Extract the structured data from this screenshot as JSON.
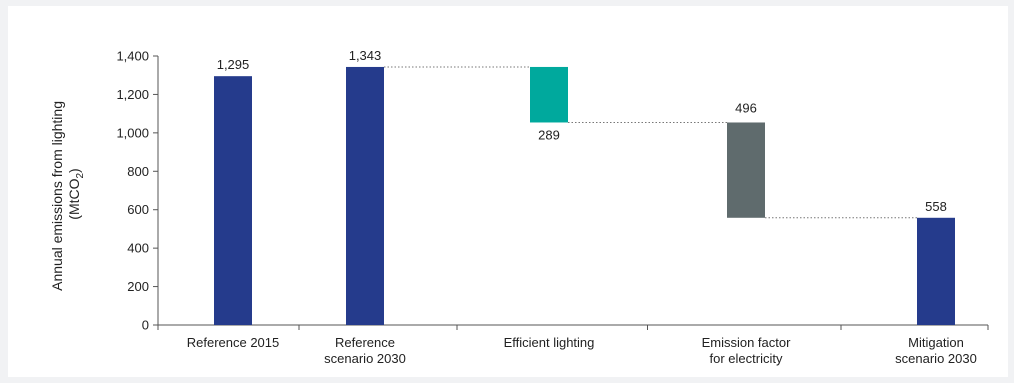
{
  "chart_data": {
    "type": "bar",
    "variant": "waterfall",
    "ylabel_line1": "Annual emissions from lighting",
    "ylabel_line2_prefix": "(MtCO",
    "ylabel_line2_sub": "2",
    "ylabel_line2_suffix": ")",
    "ylim": [
      0,
      1400
    ],
    "yticks": [
      "0",
      "200",
      "400",
      "600",
      "800",
      "1,000",
      "1,200",
      "1,400"
    ],
    "ytick_values": [
      0,
      200,
      400,
      600,
      800,
      1000,
      1200,
      1400
    ],
    "grid": false,
    "legend": "none",
    "categories": [
      [
        "Reference 2015"
      ],
      [
        "Reference",
        "scenario 2030"
      ],
      [
        "Efficient lighting"
      ],
      [
        "Emission factor",
        "for electricity"
      ],
      [
        "Mitigation",
        "scenario 2030"
      ]
    ],
    "bars": [
      {
        "kind": "total",
        "start": 0,
        "end": 1295,
        "label": "1,295",
        "color": "#253b8c"
      },
      {
        "kind": "total",
        "start": 0,
        "end": 1343,
        "label": "1,343",
        "color": "#253b8c"
      },
      {
        "kind": "decrease",
        "start": 1343,
        "end": 1054,
        "label": "289",
        "color": "#00a99d"
      },
      {
        "kind": "decrease",
        "start": 1054,
        "end": 558,
        "label": "496",
        "color": "#5f6b6d"
      },
      {
        "kind": "total",
        "start": 0,
        "end": 558,
        "label": "558",
        "color": "#253b8c"
      }
    ]
  }
}
